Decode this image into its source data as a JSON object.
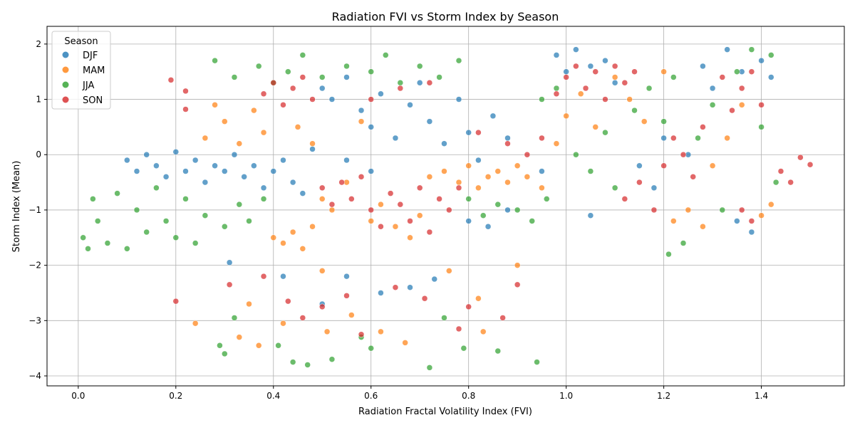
{
  "chart_data": {
    "type": "scatter",
    "title": "Radiation FVI vs Storm Index by Season",
    "xlabel": "Radiation Fractal Volatility Index (FVI)",
    "ylabel": "Storm Index (Mean)",
    "xlim": [
      -0.064,
      1.57
    ],
    "ylim": [
      -4.18,
      2.32
    ],
    "xticks": [
      0.0,
      0.2,
      0.4,
      0.6,
      0.8,
      1.0,
      1.2,
      1.4
    ],
    "xtick_labels": [
      "0.0",
      "0.2",
      "0.4",
      "0.6",
      "0.8",
      "1.0",
      "1.2",
      "1.4"
    ],
    "yticks": [
      2,
      1,
      0,
      -1,
      -2,
      -3,
      -4
    ],
    "ytick_labels": [
      "2",
      "1",
      "0",
      "−1",
      "−2",
      "−3",
      "−4"
    ],
    "grid": true,
    "legend": {
      "title": "Season",
      "placement": "top-left"
    },
    "series": [
      {
        "name": "DJF",
        "color": "#1f77b4",
        "points": [
          [
            0.1,
            -0.1
          ],
          [
            0.12,
            -0.3
          ],
          [
            0.14,
            0.0
          ],
          [
            0.16,
            -0.2
          ],
          [
            0.18,
            -0.4
          ],
          [
            0.2,
            0.05
          ],
          [
            0.22,
            -0.3
          ],
          [
            0.24,
            -0.1
          ],
          [
            0.26,
            -0.5
          ],
          [
            0.28,
            -0.2
          ],
          [
            0.3,
            -0.3
          ],
          [
            0.32,
            0.0
          ],
          [
            0.34,
            -0.4
          ],
          [
            0.36,
            -0.2
          ],
          [
            0.38,
            -0.6
          ],
          [
            0.4,
            -0.3
          ],
          [
            0.42,
            -0.1
          ],
          [
            0.44,
            -0.5
          ],
          [
            0.46,
            -0.7
          ],
          [
            0.48,
            0.1
          ],
          [
            0.5,
            1.2
          ],
          [
            0.52,
            1.0
          ],
          [
            0.55,
            1.4
          ],
          [
            0.58,
            0.8
          ],
          [
            0.6,
            0.5
          ],
          [
            0.62,
            1.1
          ],
          [
            0.65,
            0.3
          ],
          [
            0.68,
            0.9
          ],
          [
            0.7,
            1.3
          ],
          [
            0.72,
            0.6
          ],
          [
            0.75,
            0.2
          ],
          [
            0.78,
            1.0
          ],
          [
            0.8,
            0.4
          ],
          [
            0.82,
            -0.1
          ],
          [
            0.85,
            0.7
          ],
          [
            0.88,
            0.3
          ],
          [
            0.8,
            -1.2
          ],
          [
            0.84,
            -1.3
          ],
          [
            0.88,
            -1.0
          ],
          [
            0.98,
            1.8
          ],
          [
            1.0,
            1.5
          ],
          [
            1.02,
            1.9
          ],
          [
            1.05,
            1.6
          ],
          [
            1.08,
            1.7
          ],
          [
            1.1,
            1.3
          ],
          [
            1.15,
            -0.2
          ],
          [
            1.2,
            0.3
          ],
          [
            1.18,
            -0.6
          ],
          [
            1.28,
            1.6
          ],
          [
            1.3,
            1.2
          ],
          [
            1.33,
            1.9
          ],
          [
            1.36,
            1.5
          ],
          [
            1.4,
            1.7
          ],
          [
            1.42,
            1.4
          ],
          [
            1.35,
            -1.2
          ],
          [
            1.38,
            -1.4
          ],
          [
            0.31,
            -1.95
          ],
          [
            0.42,
            -2.2
          ],
          [
            0.5,
            -2.7
          ],
          [
            0.55,
            -2.2
          ],
          [
            0.62,
            -2.5
          ],
          [
            0.68,
            -2.4
          ],
          [
            0.73,
            -2.25
          ],
          [
            0.6,
            -0.3
          ],
          [
            0.55,
            -0.1
          ],
          [
            1.05,
            -1.1
          ],
          [
            0.95,
            -0.3
          ],
          [
            1.25,
            0.0
          ]
        ]
      },
      {
        "name": "MAM",
        "color": "#ff7f0e",
        "points": [
          [
            0.26,
            0.3
          ],
          [
            0.28,
            0.9
          ],
          [
            0.3,
            0.6
          ],
          [
            0.33,
            0.2
          ],
          [
            0.36,
            0.8
          ],
          [
            0.38,
            0.4
          ],
          [
            0.4,
            -1.5
          ],
          [
            0.42,
            -1.6
          ],
          [
            0.44,
            -1.4
          ],
          [
            0.46,
            -1.7
          ],
          [
            0.48,
            -1.3
          ],
          [
            0.45,
            0.5
          ],
          [
            0.48,
            0.2
          ],
          [
            0.5,
            -0.8
          ],
          [
            0.52,
            -1.0
          ],
          [
            0.55,
            -0.5
          ],
          [
            0.58,
            0.6
          ],
          [
            0.6,
            -1.2
          ],
          [
            0.62,
            -0.9
          ],
          [
            0.65,
            -1.3
          ],
          [
            0.68,
            -1.5
          ],
          [
            0.7,
            -1.1
          ],
          [
            0.72,
            -0.4
          ],
          [
            0.75,
            -0.3
          ],
          [
            0.78,
            -0.5
          ],
          [
            0.8,
            -0.2
          ],
          [
            0.82,
            -0.6
          ],
          [
            0.84,
            -0.4
          ],
          [
            0.86,
            -0.3
          ],
          [
            0.88,
            -0.5
          ],
          [
            0.9,
            -0.2
          ],
          [
            0.92,
            -0.4
          ],
          [
            0.95,
            -0.6
          ],
          [
            0.98,
            0.2
          ],
          [
            1.0,
            0.7
          ],
          [
            1.03,
            1.1
          ],
          [
            1.06,
            0.5
          ],
          [
            1.1,
            1.4
          ],
          [
            1.13,
            1.0
          ],
          [
            1.16,
            0.6
          ],
          [
            1.2,
            1.5
          ],
          [
            1.22,
            -1.2
          ],
          [
            1.25,
            -1.0
          ],
          [
            1.28,
            -1.3
          ],
          [
            1.3,
            -0.2
          ],
          [
            1.33,
            0.3
          ],
          [
            1.36,
            0.9
          ],
          [
            1.4,
            -1.1
          ],
          [
            1.42,
            -0.9
          ],
          [
            0.24,
            -3.05
          ],
          [
            0.33,
            -3.3
          ],
          [
            0.35,
            -2.7
          ],
          [
            0.37,
            -3.45
          ],
          [
            0.42,
            -3.05
          ],
          [
            0.5,
            -2.1
          ],
          [
            0.51,
            -3.2
          ],
          [
            0.56,
            -2.9
          ],
          [
            0.62,
            -3.2
          ],
          [
            0.67,
            -3.4
          ],
          [
            0.76,
            -2.1
          ],
          [
            0.82,
            -2.6
          ],
          [
            0.83,
            -3.2
          ],
          [
            0.9,
            -2.0
          ]
        ]
      },
      {
        "name": "JJA",
        "color": "#2ca02c",
        "points": [
          [
            0.01,
            -1.5
          ],
          [
            0.02,
            -1.7
          ],
          [
            0.03,
            -0.8
          ],
          [
            0.04,
            -1.2
          ],
          [
            0.06,
            -1.6
          ],
          [
            0.08,
            -0.7
          ],
          [
            0.1,
            -1.7
          ],
          [
            0.12,
            -1.0
          ],
          [
            0.14,
            -1.4
          ],
          [
            0.16,
            -0.6
          ],
          [
            0.18,
            -1.2
          ],
          [
            0.2,
            -1.5
          ],
          [
            0.22,
            -0.8
          ],
          [
            0.24,
            -1.6
          ],
          [
            0.26,
            -1.1
          ],
          [
            0.28,
            1.7
          ],
          [
            0.3,
            -1.3
          ],
          [
            0.32,
            1.4
          ],
          [
            0.33,
            -0.9
          ],
          [
            0.35,
            -1.2
          ],
          [
            0.37,
            1.6
          ],
          [
            0.38,
            -0.8
          ],
          [
            0.4,
            1.3
          ],
          [
            0.43,
            1.5
          ],
          [
            0.46,
            1.8
          ],
          [
            0.5,
            1.4
          ],
          [
            0.55,
            1.6
          ],
          [
            0.6,
            1.5
          ],
          [
            0.63,
            1.8
          ],
          [
            0.66,
            1.3
          ],
          [
            0.7,
            1.6
          ],
          [
            0.74,
            1.4
          ],
          [
            0.78,
            1.7
          ],
          [
            0.8,
            -0.8
          ],
          [
            0.83,
            -1.1
          ],
          [
            0.86,
            -0.9
          ],
          [
            0.9,
            -1.0
          ],
          [
            0.93,
            -1.2
          ],
          [
            0.96,
            -0.8
          ],
          [
            0.95,
            1.0
          ],
          [
            0.98,
            1.2
          ],
          [
            1.02,
            0.0
          ],
          [
            1.05,
            -0.3
          ],
          [
            1.08,
            0.4
          ],
          [
            1.1,
            -0.6
          ],
          [
            1.14,
            0.8
          ],
          [
            1.17,
            1.2
          ],
          [
            1.2,
            0.6
          ],
          [
            1.22,
            1.4
          ],
          [
            1.21,
            -1.8
          ],
          [
            1.24,
            -1.6
          ],
          [
            1.27,
            0.3
          ],
          [
            1.3,
            0.9
          ],
          [
            1.32,
            -1.0
          ],
          [
            1.35,
            1.5
          ],
          [
            1.38,
            1.9
          ],
          [
            1.4,
            0.5
          ],
          [
            1.42,
            1.8
          ],
          [
            1.43,
            -0.5
          ],
          [
            0.29,
            -3.45
          ],
          [
            0.3,
            -3.6
          ],
          [
            0.32,
            -2.95
          ],
          [
            0.41,
            -3.45
          ],
          [
            0.44,
            -3.75
          ],
          [
            0.47,
            -3.8
          ],
          [
            0.52,
            -3.7
          ],
          [
            0.58,
            -3.3
          ],
          [
            0.6,
            -3.5
          ],
          [
            0.72,
            -3.85
          ],
          [
            0.75,
            -2.95
          ],
          [
            0.79,
            -3.5
          ],
          [
            0.86,
            -3.55
          ],
          [
            0.94,
            -3.75
          ]
        ]
      },
      {
        "name": "SON",
        "color": "#d62728",
        "points": [
          [
            0.19,
            1.35
          ],
          [
            0.22,
            1.15
          ],
          [
            0.22,
            0.82
          ],
          [
            0.2,
            -2.65
          ],
          [
            0.38,
            1.1
          ],
          [
            0.4,
            1.3
          ],
          [
            0.42,
            0.9
          ],
          [
            0.44,
            1.2
          ],
          [
            0.46,
            1.4
          ],
          [
            0.48,
            1.0
          ],
          [
            0.5,
            -0.6
          ],
          [
            0.52,
            -0.9
          ],
          [
            0.54,
            -0.5
          ],
          [
            0.56,
            -0.8
          ],
          [
            0.58,
            -0.4
          ],
          [
            0.6,
            -1.0
          ],
          [
            0.62,
            -1.3
          ],
          [
            0.64,
            -0.7
          ],
          [
            0.66,
            -0.9
          ],
          [
            0.68,
            -1.2
          ],
          [
            0.7,
            -0.6
          ],
          [
            0.72,
            -1.4
          ],
          [
            0.74,
            -0.8
          ],
          [
            0.76,
            -1.0
          ],
          [
            0.78,
            -0.6
          ],
          [
            0.6,
            1.0
          ],
          [
            0.66,
            1.2
          ],
          [
            0.72,
            1.3
          ],
          [
            0.82,
            0.4
          ],
          [
            0.88,
            0.2
          ],
          [
            0.92,
            0.0
          ],
          [
            0.95,
            0.3
          ],
          [
            0.98,
            1.1
          ],
          [
            1.0,
            1.4
          ],
          [
            1.02,
            1.6
          ],
          [
            1.04,
            1.2
          ],
          [
            1.06,
            1.5
          ],
          [
            1.08,
            1.0
          ],
          [
            1.1,
            1.6
          ],
          [
            1.12,
            1.3
          ],
          [
            1.14,
            1.5
          ],
          [
            1.12,
            -0.8
          ],
          [
            1.15,
            -0.5
          ],
          [
            1.18,
            -1.0
          ],
          [
            1.2,
            -0.2
          ],
          [
            1.22,
            0.3
          ],
          [
            1.24,
            0.0
          ],
          [
            1.26,
            -0.4
          ],
          [
            1.28,
            0.5
          ],
          [
            1.32,
            1.4
          ],
          [
            1.34,
            0.8
          ],
          [
            1.36,
            1.2
          ],
          [
            1.38,
            1.5
          ],
          [
            1.4,
            0.9
          ],
          [
            1.36,
            -1.0
          ],
          [
            1.38,
            -1.2
          ],
          [
            1.44,
            -0.3
          ],
          [
            1.46,
            -0.5
          ],
          [
            1.48,
            -0.05
          ],
          [
            1.5,
            -0.18
          ],
          [
            0.31,
            -2.35
          ],
          [
            0.38,
            -2.2
          ],
          [
            0.43,
            -2.65
          ],
          [
            0.46,
            -2.95
          ],
          [
            0.5,
            -2.75
          ],
          [
            0.55,
            -2.55
          ],
          [
            0.58,
            -3.25
          ],
          [
            0.65,
            -2.4
          ],
          [
            0.71,
            -2.6
          ],
          [
            0.78,
            -3.15
          ],
          [
            0.8,
            -2.75
          ],
          [
            0.87,
            -2.95
          ],
          [
            0.9,
            -2.35
          ]
        ]
      }
    ]
  }
}
